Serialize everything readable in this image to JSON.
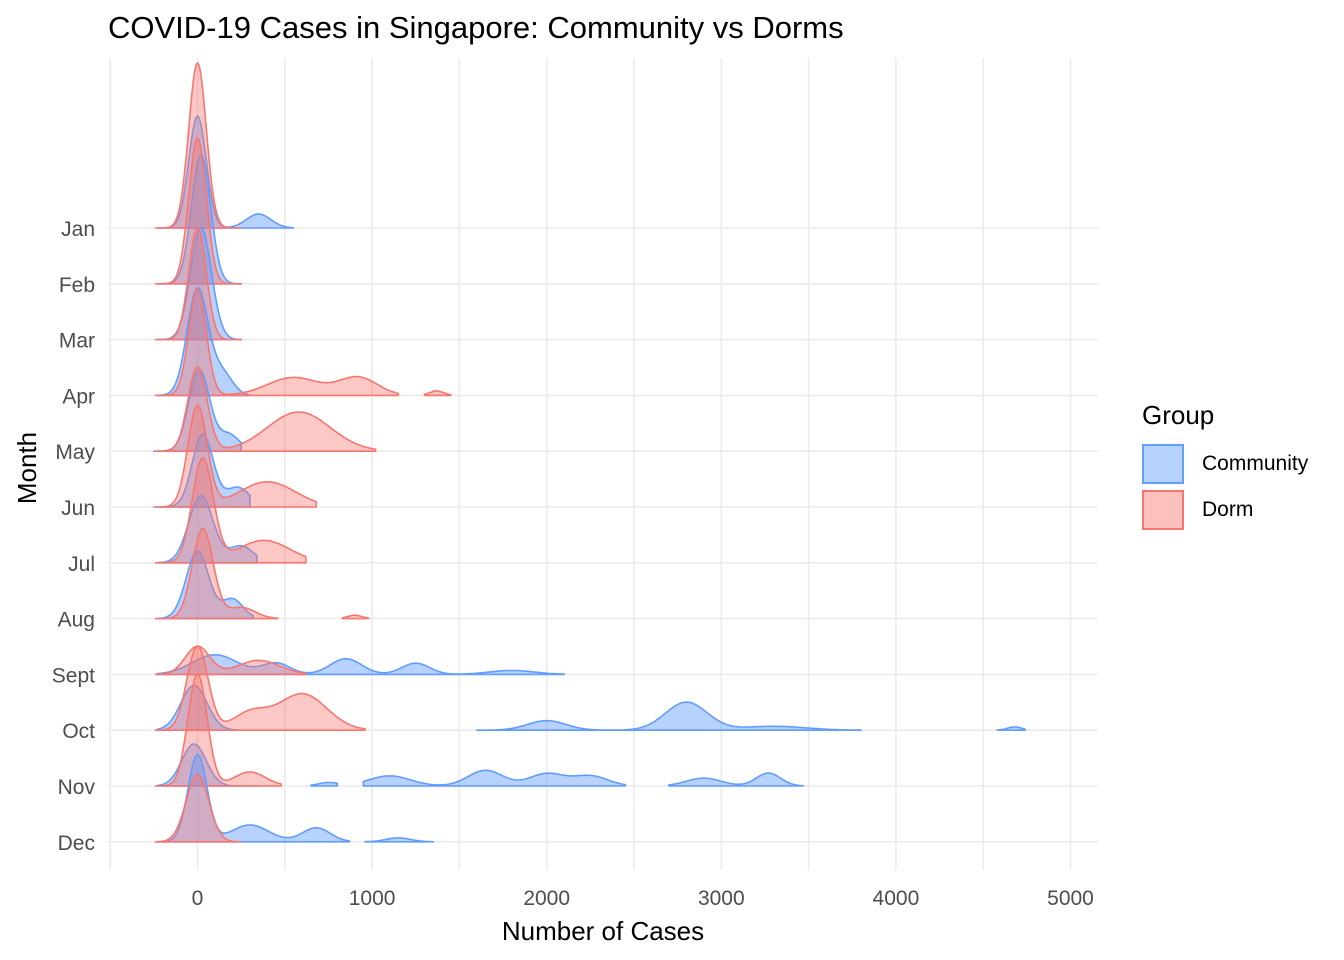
{
  "chart_data": {
    "type": "ridgeline",
    "title": "COVID-19 Cases in Singapore: Community vs Dorms",
    "xlabel": "Number of Cases",
    "ylabel": "Month",
    "xlim": [
      -500,
      5150
    ],
    "x_ticks": [
      0,
      1000,
      2000,
      3000,
      4000,
      5000
    ],
    "x_tick_labels": [
      "0",
      "1000",
      "2000",
      "3000",
      "4000",
      "5000"
    ],
    "categories": [
      "Jan",
      "Feb",
      "Mar",
      "Apr",
      "May",
      "Jun",
      "Jul",
      "Aug",
      "Sept",
      "Oct",
      "Nov",
      "Dec"
    ],
    "legend": {
      "title": "Group",
      "position": "right"
    },
    "grid": true,
    "series": [
      {
        "name": "Community",
        "color": "#619CFF",
        "peaks_by_month": [
          [
            [
              0,
              2.0,
              50
            ],
            [
              350,
              0.25,
              70
            ]
          ],
          [
            [
              20,
              2.3,
              55
            ]
          ],
          [
            [
              20,
              2.0,
              60
            ]
          ],
          [
            [
              0,
              1.9,
              60
            ],
            [
              140,
              0.4,
              60
            ]
          ],
          [
            [
              10,
              1.45,
              60
            ],
            [
              180,
              0.3,
              60
            ]
          ],
          [
            [
              30,
              1.3,
              60
            ],
            [
              230,
              0.35,
              70
            ]
          ],
          [
            [
              20,
              1.2,
              70
            ],
            [
              250,
              0.3,
              70
            ]
          ],
          [
            [
              0,
              1.2,
              65
            ],
            [
              200,
              0.35,
              60
            ]
          ],
          [
            [
              100,
              0.35,
              130
            ],
            [
              450,
              0.2,
              80
            ],
            [
              850,
              0.28,
              90
            ],
            [
              1250,
              0.2,
              80
            ],
            [
              1800,
              0.07,
              130
            ]
          ],
          [
            [
              -20,
              0.8,
              75
            ],
            [
              2000,
              0.17,
              110
            ],
            [
              2800,
              0.5,
              120
            ],
            [
              3300,
              0.07,
              180
            ],
            [
              4680,
              0.06,
              40
            ]
          ],
          [
            [
              -20,
              0.75,
              70
            ],
            [
              750,
              0.06,
              60
            ],
            [
              1100,
              0.18,
              120
            ],
            [
              1650,
              0.28,
              100
            ],
            [
              2000,
              0.22,
              100
            ],
            [
              2250,
              0.18,
              100
            ],
            [
              2900,
              0.14,
              100
            ],
            [
              3270,
              0.23,
              70
            ]
          ],
          [
            [
              0,
              1.55,
              55
            ],
            [
              300,
              0.3,
              110
            ],
            [
              680,
              0.25,
              80
            ],
            [
              1150,
              0.07,
              70
            ]
          ]
        ],
        "ranges_by_month": [
          [
            [
              -230,
              550
            ]
          ],
          [
            [
              -230,
              250
            ]
          ],
          [
            [
              -230,
              250
            ]
          ],
          [
            [
              -230,
              290
            ]
          ],
          [
            [
              -250,
              250
            ]
          ],
          [
            [
              -250,
              300
            ]
          ],
          [
            [
              -230,
              340
            ]
          ],
          [
            [
              -230,
              320
            ]
          ],
          [
            [
              -230,
              2100
            ]
          ],
          [
            [
              -230,
              240
            ],
            [
              1600,
              3800
            ],
            [
              4580,
              4740
            ]
          ],
          [
            [
              -230,
              350
            ],
            [
              650,
              800
            ],
            [
              950,
              2450
            ],
            [
              2700,
              3470
            ]
          ],
          [
            [
              -240,
              870
            ],
            [
              960,
              1350
            ]
          ]
        ]
      },
      {
        "name": "Dorm",
        "color": "#F8766D",
        "peaks_by_month": [
          [
            [
              0,
              2.95,
              50
            ]
          ],
          [
            [
              0,
              2.6,
              50
            ]
          ],
          [
            [
              0,
              2.0,
              50
            ]
          ],
          [
            [
              0,
              1.9,
              50
            ],
            [
              550,
              0.32,
              150
            ],
            [
              920,
              0.32,
              110
            ],
            [
              1370,
              0.08,
              40
            ]
          ],
          [
            [
              0,
              1.5,
              55
            ],
            [
              580,
              0.7,
              180
            ]
          ],
          [
            [
              0,
              1.8,
              55
            ],
            [
              400,
              0.45,
              160
            ]
          ],
          [
            [
              30,
              1.85,
              60
            ],
            [
              380,
              0.4,
              150
            ]
          ],
          [
            [
              30,
              1.6,
              60
            ],
            [
              250,
              0.2,
              80
            ],
            [
              900,
              0.06,
              40
            ]
          ],
          [
            [
              0,
              0.5,
              70
            ],
            [
              350,
              0.25,
              120
            ]
          ],
          [
            [
              0,
              1.5,
              60
            ],
            [
              300,
              0.3,
              100
            ],
            [
              600,
              0.65,
              140
            ]
          ],
          [
            [
              0,
              2.0,
              55
            ],
            [
              300,
              0.25,
              90
            ]
          ],
          [
            [
              0,
              1.2,
              65
            ]
          ]
        ],
        "ranges_by_month": [
          [
            [
              -240,
              250
            ]
          ],
          [
            [
              -240,
              250
            ]
          ],
          [
            [
              -240,
              250
            ]
          ],
          [
            [
              -240,
              1150
            ],
            [
              1300,
              1450
            ]
          ],
          [
            [
              -240,
              1020
            ]
          ],
          [
            [
              -240,
              680
            ]
          ],
          [
            [
              -240,
              620
            ]
          ],
          [
            [
              -240,
              460
            ],
            [
              830,
              980
            ]
          ],
          [
            [
              -240,
              620
            ]
          ],
          [
            [
              -240,
              960
            ]
          ],
          [
            [
              -240,
              480
            ]
          ],
          [
            [
              -240,
              250
            ]
          ]
        ]
      }
    ]
  }
}
